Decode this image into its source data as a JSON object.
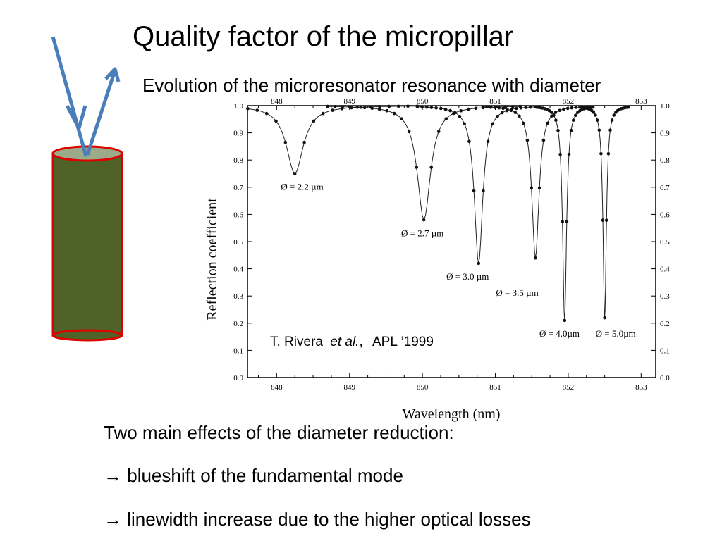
{
  "slide": {
    "title": "Quality factor of the micropillar",
    "subtitle": "Evolution of the microresonator resonance with diameter",
    "effects_heading": "Two main effects of the diameter reduction:",
    "effects": [
      {
        "arrow": "→",
        "text": "blueshift of the fundamental mode"
      },
      {
        "arrow": "→",
        "text": "linewidth increase due to the higher optical losses"
      }
    ],
    "colors": {
      "pillar_body": "#4f6228",
      "pillar_outline": "#e00000",
      "pillar_top": "#9bab8a",
      "beam_arrows": "#4a7ebb"
    }
  },
  "chart_data": {
    "type": "line",
    "xlabel": "Wavelength (nm)",
    "ylabel": "Reflection coefficient",
    "xlim": [
      847.6,
      853.2
    ],
    "ylim": [
      0.0,
      1.0
    ],
    "x_ticks": [
      "848",
      "849",
      "850",
      "851",
      "852",
      "853"
    ],
    "y_ticks": [
      "0.0",
      "0.1",
      "0.2",
      "0.3",
      "0.4",
      "0.5",
      "0.6",
      "0.7",
      "0.8",
      "0.9",
      "1.0"
    ],
    "citation": {
      "author": "T. Rivera",
      "etal": "et al.",
      "journal": "APL ’1999"
    },
    "series": [
      {
        "name": "Ø = 2.2 µm",
        "center": 848.25,
        "min": 0.75,
        "width": 0.28
      },
      {
        "name": "Ø = 2.7 µm",
        "center": 850.02,
        "min": 0.58,
        "width": 0.22
      },
      {
        "name": "Ø = 3.0 µm",
        "center": 850.77,
        "min": 0.42,
        "width": 0.14
      },
      {
        "name": "Ø = 3.5 µm",
        "center": 851.55,
        "min": 0.44,
        "width": 0.12
      },
      {
        "name": "Ø = 4.0µm",
        "center": 851.95,
        "min": 0.21,
        "width": 0.065
      },
      {
        "name": "Ø = 5.0µm",
        "center": 852.5,
        "min": 0.22,
        "width": 0.055
      }
    ]
  }
}
